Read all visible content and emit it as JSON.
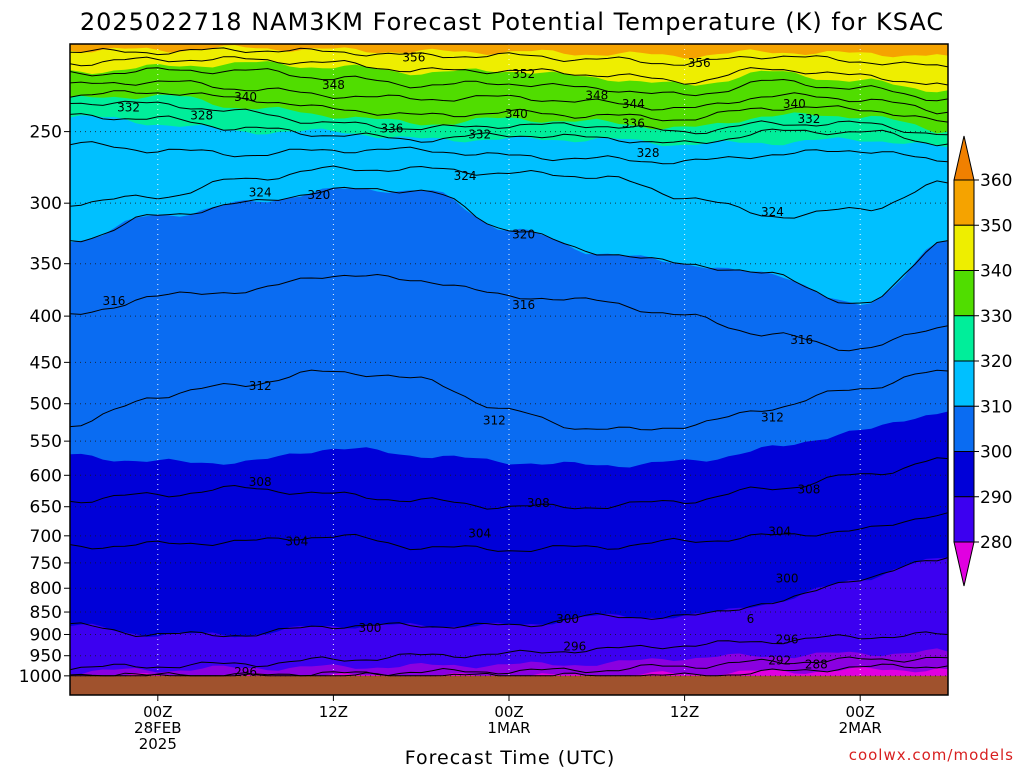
{
  "chart_data": {
    "type": "contour",
    "title": "2025022718 NAM3KM Forecast Potential Temperature (K) for KSAC",
    "xlabel": "Forecast Time (UTC)",
    "ylabel": "",
    "y_axis": {
      "scale": "log",
      "range_hpa": [
        1050,
        200
      ],
      "ticks": [
        250,
        300,
        350,
        400,
        450,
        500,
        550,
        600,
        650,
        700,
        750,
        800,
        850,
        900,
        950,
        1000
      ],
      "tick_labels": [
        "250",
        "300",
        "350",
        "400",
        "450",
        "500",
        "550",
        "600",
        "650",
        "700",
        "750",
        "800",
        "850",
        "900",
        "950",
        "1000"
      ]
    },
    "x_axis": {
      "range_hours": [
        0,
        60
      ],
      "ticks": [
        {
          "hour": 6,
          "lines": [
            "00Z",
            "28FEB",
            "2025"
          ]
        },
        {
          "hour": 18,
          "lines": [
            "12Z"
          ]
        },
        {
          "hour": 30,
          "lines": [
            "00Z",
            "1MAR"
          ]
        },
        {
          "hour": 42,
          "lines": [
            "12Z"
          ]
        },
        {
          "hour": 54,
          "lines": [
            "00Z",
            "2MAR"
          ]
        }
      ]
    },
    "grid": true,
    "colorbar": {
      "levels": [
        280,
        290,
        300,
        310,
        320,
        330,
        340,
        350,
        360
      ],
      "labels": [
        "280",
        "290",
        "300",
        "310",
        "320",
        "330",
        "340",
        "350",
        "360"
      ],
      "colors": [
        "#8a00e0",
        "#3c00f0",
        "#0000d8",
        "#0a6cf2",
        "#00c0ff",
        "#00ee9a",
        "#50dd00",
        "#eeee00",
        "#f5a300"
      ],
      "under_color": "#e000e0",
      "over_color": "#f08000"
    },
    "fill_bands": [
      {
        "theta": 285,
        "color": "#8a00e0",
        "p": [
          1000,
          1000,
          1000,
          1000,
          1000,
          1000,
          1000,
          995,
          990,
          985,
          983
        ]
      },
      {
        "theta": 290,
        "color": "#3c00f0",
        "p": [
          990,
          985,
          980,
          978,
          975,
          972,
          970,
          955,
          950,
          945,
          940
        ]
      },
      {
        "theta": 300,
        "color": "#0000d8",
        "p": [
          880,
          900,
          900,
          880,
          880,
          880,
          860,
          860,
          830,
          780,
          740
        ]
      },
      {
        "theta": 310,
        "color": "#0a6cf2",
        "p": [
          570,
          580,
          580,
          560,
          570,
          580,
          585,
          580,
          560,
          535,
          510
        ]
      },
      {
        "theta": 320,
        "color": "#00c0ff",
        "p": [
          330,
          310,
          300,
          290,
          290,
          320,
          340,
          350,
          360,
          390,
          330
        ]
      },
      {
        "theta": 330,
        "color": "#00ee9a",
        "p": [
          240,
          245,
          250,
          250,
          255,
          255,
          255,
          258,
          257,
          255,
          260
        ]
      },
      {
        "theta": 340,
        "color": "#50dd00",
        "p": [
          230,
          228,
          235,
          240,
          245,
          242,
          244,
          248,
          240,
          240,
          250
        ]
      },
      {
        "theta": 350,
        "color": "#eeee00",
        "p": [
          215,
          212,
          210,
          212,
          215,
          214,
          218,
          222,
          215,
          220,
          225
        ]
      },
      {
        "theta": 360,
        "color": "#f5a300",
        "p": [
          203,
          203,
          202,
          203,
          204,
          204,
          205,
          206,
          204,
          205,
          206
        ]
      }
    ],
    "isentropes": [
      {
        "theta": 288,
        "label": "288",
        "p": [
          1000,
          1000,
          1000,
          1000,
          1000,
          1000,
          1000,
          1000,
          990,
          978,
          975
        ]
      },
      {
        "theta": 292,
        "label": "292",
        "p": [
          1000,
          1000,
          1000,
          995,
          990,
          988,
          985,
          975,
          965,
          960,
          955
        ]
      },
      {
        "theta": 296,
        "label": "296",
        "p": [
          980,
          975,
          970,
          960,
          950,
          945,
          935,
          925,
          915,
          905,
          900
        ]
      },
      {
        "theta": 300,
        "label": "300",
        "p": [
          880,
          900,
          900,
          880,
          880,
          880,
          860,
          860,
          830,
          780,
          740
        ]
      },
      {
        "theta": 304,
        "label": "304",
        "p": [
          720,
          715,
          710,
          700,
          720,
          725,
          720,
          710,
          700,
          690,
          660
        ]
      },
      {
        "theta": 308,
        "label": "308",
        "p": [
          640,
          630,
          620,
          630,
          640,
          650,
          650,
          640,
          620,
          600,
          575
        ]
      },
      {
        "theta": 312,
        "label": "312",
        "p": [
          530,
          490,
          475,
          460,
          470,
          510,
          535,
          530,
          505,
          480,
          460
        ]
      },
      {
        "theta": 316,
        "label": "316",
        "p": [
          400,
          380,
          375,
          360,
          365,
          380,
          385,
          400,
          420,
          435,
          410
        ]
      },
      {
        "theta": 320,
        "label": "320",
        "p": [
          330,
          310,
          300,
          290,
          290,
          320,
          340,
          350,
          360,
          390,
          330
        ]
      },
      {
        "theta": 324,
        "label": "324",
        "p": [
          300,
          295,
          282,
          275,
          275,
          278,
          280,
          295,
          310,
          305,
          285
        ]
      },
      {
        "theta": 328,
        "label": "328",
        "p": [
          258,
          262,
          265,
          262,
          262,
          266,
          268,
          270,
          265,
          262,
          270
        ]
      },
      {
        "theta": 332,
        "label": "332",
        "p": [
          240,
          242,
          248,
          252,
          255,
          252,
          254,
          258,
          250,
          250,
          258
        ]
      },
      {
        "theta": 336,
        "label": "336",
        "p": [
          232,
          233,
          238,
          245,
          248,
          246,
          246,
          250,
          245,
          245,
          252
        ]
      },
      {
        "theta": 340,
        "label": "340",
        "p": [
          228,
          226,
          230,
          236,
          240,
          238,
          240,
          242,
          235,
          236,
          244
        ]
      },
      {
        "theta": 344,
        "label": "344",
        "p": [
          222,
          220,
          224,
          228,
          230,
          229,
          232,
          236,
          228,
          230,
          238
        ]
      },
      {
        "theta": 348,
        "label": "348",
        "p": [
          216,
          214,
          214,
          218,
          222,
          221,
          224,
          228,
          220,
          224,
          230
        ]
      },
      {
        "theta": 352,
        "label": "352",
        "p": [
          210,
          208,
          208,
          210,
          214,
          214,
          216,
          220,
          213,
          217,
          222
        ]
      },
      {
        "theta": 356,
        "label": "356",
        "p": [
          204,
          204,
          203,
          204,
          206,
          206,
          208,
          210,
          206,
          209,
          212
        ]
      }
    ],
    "contour_hours": [
      0,
      6,
      12,
      18,
      24,
      30,
      36,
      42,
      48,
      54,
      60
    ],
    "contour_labels": [
      {
        "text": "356",
        "hour": 23.5,
        "p": 207
      },
      {
        "text": "356",
        "hour": 43.0,
        "p": 210
      },
      {
        "text": "352",
        "hour": 31.0,
        "p": 216
      },
      {
        "text": "348",
        "hour": 18.0,
        "p": 222
      },
      {
        "text": "348",
        "hour": 36.0,
        "p": 228
      },
      {
        "text": "344",
        "hour": 38.5,
        "p": 233
      },
      {
        "text": "340",
        "hour": 12.0,
        "p": 229
      },
      {
        "text": "340",
        "hour": 30.5,
        "p": 239
      },
      {
        "text": "340",
        "hour": 49.5,
        "p": 233
      },
      {
        "text": "336",
        "hour": 38.5,
        "p": 245
      },
      {
        "text": "336",
        "hour": 22.0,
        "p": 248
      },
      {
        "text": "332",
        "hour": 4.0,
        "p": 235
      },
      {
        "text": "332",
        "hour": 28.0,
        "p": 252
      },
      {
        "text": "332",
        "hour": 50.5,
        "p": 242
      },
      {
        "text": "328",
        "hour": 9.0,
        "p": 240
      },
      {
        "text": "328",
        "hour": 39.5,
        "p": 264
      },
      {
        "text": "324",
        "hour": 27.0,
        "p": 280
      },
      {
        "text": "324",
        "hour": 13.0,
        "p": 292
      },
      {
        "text": "324",
        "hour": 48.0,
        "p": 307
      },
      {
        "text": "320",
        "hour": 17.0,
        "p": 294
      },
      {
        "text": "320",
        "hour": 31.0,
        "p": 325
      },
      {
        "text": "316",
        "hour": 3.0,
        "p": 385
      },
      {
        "text": "316",
        "hour": 31.0,
        "p": 389
      },
      {
        "text": "316",
        "hour": 50.0,
        "p": 425
      },
      {
        "text": "312",
        "hour": 13.0,
        "p": 478
      },
      {
        "text": "312",
        "hour": 29.0,
        "p": 522
      },
      {
        "text": "312",
        "hour": 48.0,
        "p": 518
      },
      {
        "text": "308",
        "hour": 13.0,
        "p": 610
      },
      {
        "text": "308",
        "hour": 32.0,
        "p": 644
      },
      {
        "text": "308",
        "hour": 50.5,
        "p": 622
      },
      {
        "text": "304",
        "hour": 15.5,
        "p": 710
      },
      {
        "text": "304",
        "hour": 28.0,
        "p": 696
      },
      {
        "text": "304",
        "hour": 48.5,
        "p": 692
      },
      {
        "text": "300",
        "hour": 20.5,
        "p": 885
      },
      {
        "text": "300",
        "hour": 34.0,
        "p": 865
      },
      {
        "text": "300",
        "hour": 49.0,
        "p": 780
      },
      {
        "text": "296",
        "hour": 12.0,
        "p": 990
      },
      {
        "text": "296",
        "hour": 34.5,
        "p": 928
      },
      {
        "text": "296",
        "hour": 49.0,
        "p": 912
      },
      {
        "text": "292",
        "hour": 48.5,
        "p": 962
      },
      {
        "text": "288",
        "hour": 51.0,
        "p": 972
      },
      {
        "text": "6",
        "hour": 46.5,
        "p": 865
      }
    ],
    "ground_color": "#a0522d",
    "credit": "coolwx.com/models",
    "credit_color": "#d82020"
  }
}
